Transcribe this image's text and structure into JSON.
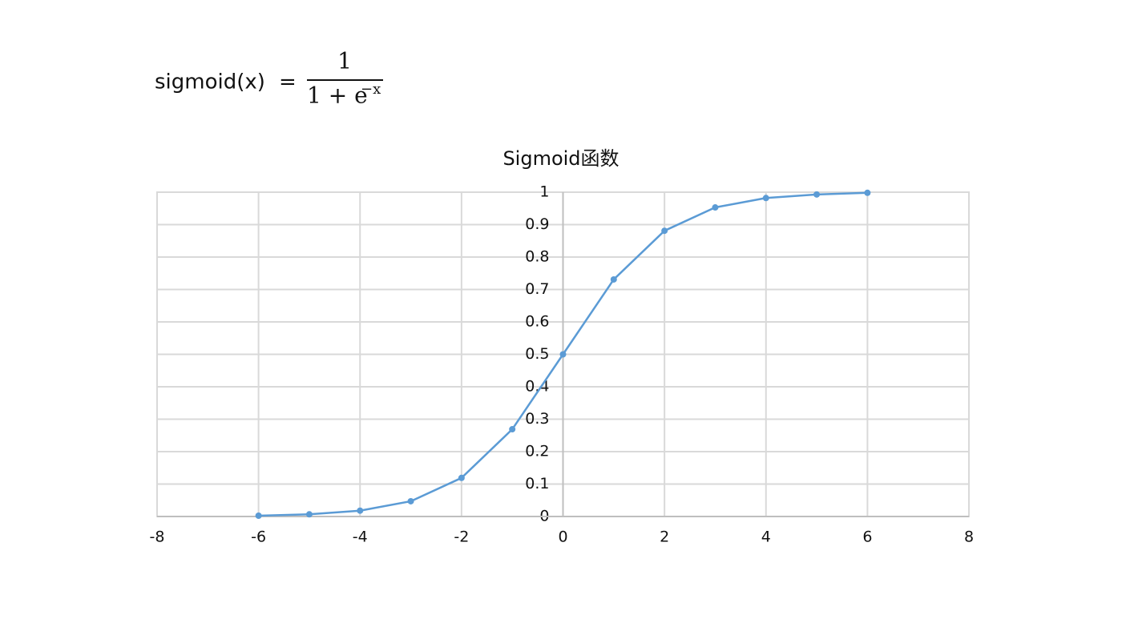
{
  "formula": {
    "lhs": "sigmoid(x)",
    "equals": "=",
    "numerator": "1",
    "denominator": "1 + e",
    "exponent": "−x"
  },
  "chart_data": {
    "type": "line",
    "title": "Sigmoid函数",
    "x": [
      -6,
      -5,
      -4,
      -3,
      -2,
      -1,
      0,
      1,
      2,
      3,
      4,
      5,
      6
    ],
    "values": [
      0.0025,
      0.0067,
      0.018,
      0.047,
      0.119,
      0.269,
      0.5,
      0.731,
      0.881,
      0.953,
      0.982,
      0.993,
      0.998
    ],
    "color": "#5b9bd5",
    "markers": true,
    "xlim": [
      -8,
      8
    ],
    "xticks": [
      -8,
      -6,
      -4,
      -2,
      0,
      2,
      4,
      6,
      8
    ],
    "ylim": [
      0,
      1
    ],
    "yticks": [
      0,
      0.1,
      0.2,
      0.3,
      0.4,
      0.5,
      0.6,
      0.7,
      0.8,
      0.9,
      1
    ],
    "grid": true
  }
}
